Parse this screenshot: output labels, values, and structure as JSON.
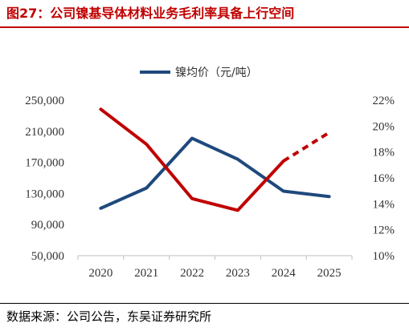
{
  "title": "图27：公司镍基导体材料业务毛利率具备上行空间",
  "source": "数据来源：公司公告，东吴证券研究所",
  "colors": {
    "price": "#1f497d",
    "margin": "#c00000",
    "axis": "#bfbfbf",
    "text": "#333333"
  },
  "chart_data": {
    "type": "line",
    "categories": [
      "2020",
      "2021",
      "2022",
      "2023",
      "2024",
      "2025"
    ],
    "series": [
      {
        "name": "镍均价（元/吨）",
        "axis": "left",
        "values": [
          111000,
          137000,
          201000,
          174000,
          133000,
          126000
        ]
      },
      {
        "name": "",
        "axis": "right",
        "values": [
          21.3,
          18.6,
          14.4,
          13.5,
          17.3,
          19.5
        ],
        "dashed_from_index": 4
      }
    ],
    "y_left": {
      "lim": [
        50000,
        250000
      ],
      "ticks": [
        "50,000",
        "90,000",
        "130,000",
        "170,000",
        "210,000",
        "250,000"
      ]
    },
    "y_right": {
      "lim": [
        10,
        22
      ],
      "ticks": [
        "10%",
        "12%",
        "14%",
        "16%",
        "18%",
        "20%",
        "22%"
      ]
    },
    "grid": false,
    "legend": "top-center"
  }
}
